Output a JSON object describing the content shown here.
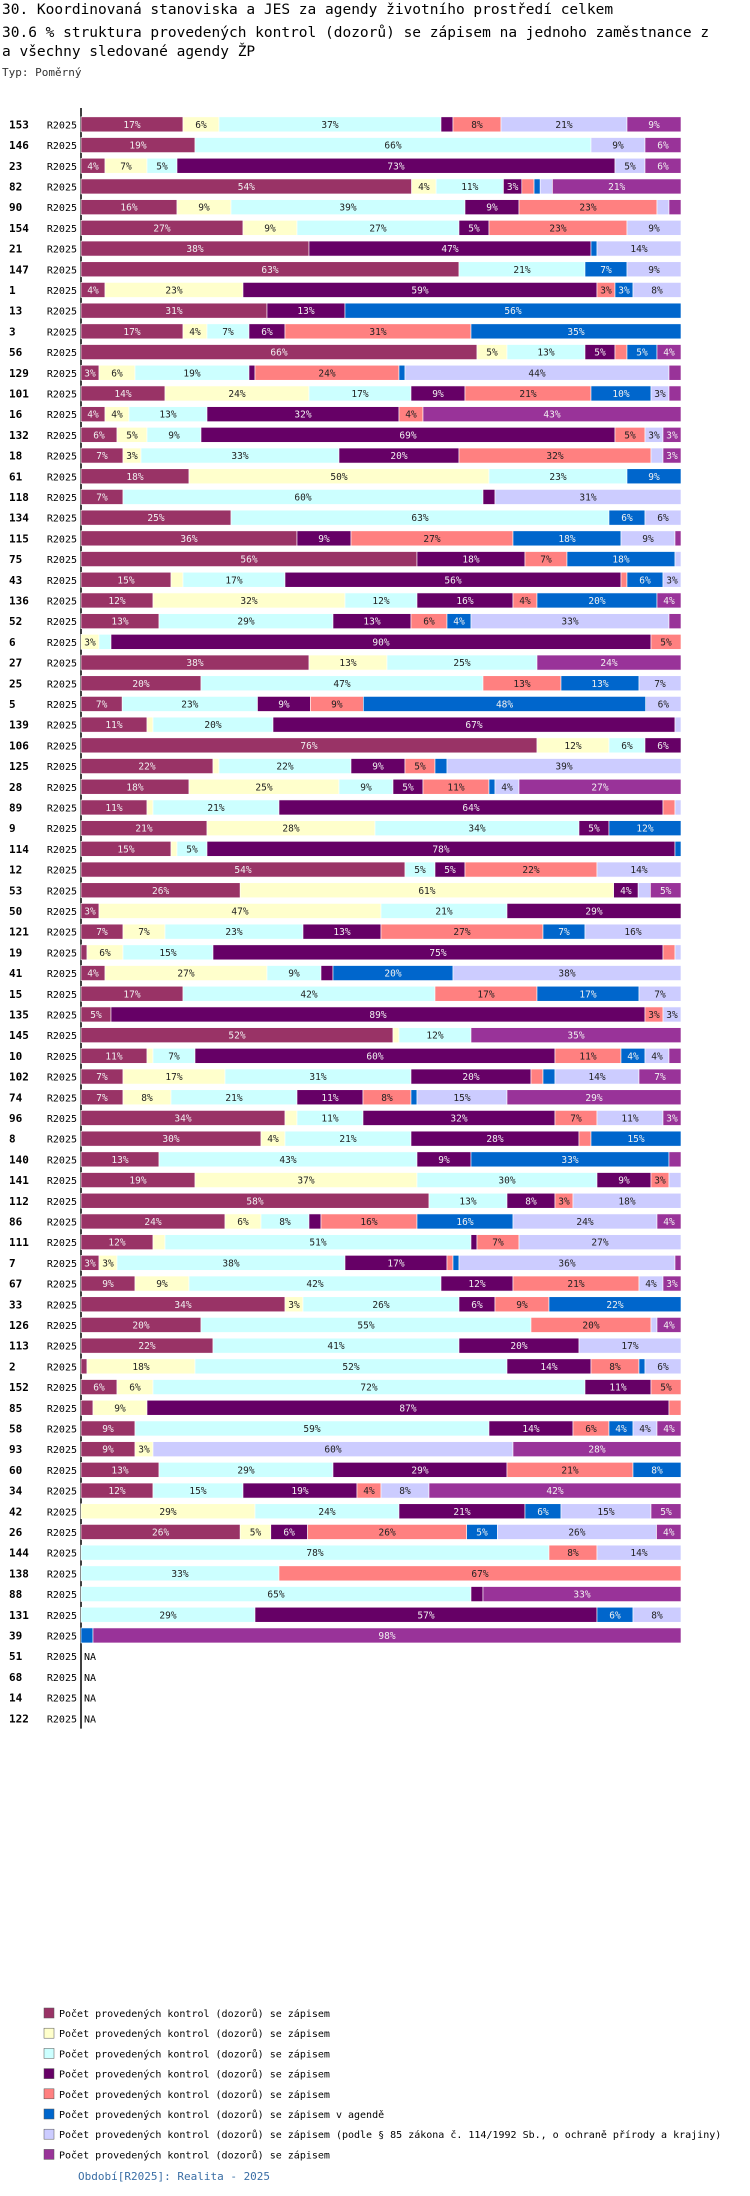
{
  "header": {
    "line1": "30. Koordinovaná stanoviska a JES za agendy životního prostředí celkem",
    "line2": "30.6 % struktura provedených kontrol (dozorů) se zápisem na jednoho zaměstnance z",
    "line3": "a všechny sledované agendy ŽP",
    "type_label": "Typ: Poměrný"
  },
  "footer": {
    "text": "Období[R2025]: Realita - 2025"
  },
  "colors": [
    "#993366",
    "#ffffcc",
    "#ccffff",
    "#660066",
    "#ff8080",
    "#0066cc",
    "#ccccff",
    "#993399"
  ],
  "chart_data": {
    "type": "bar",
    "orientation": "horizontal",
    "stacked": true,
    "normalized": true,
    "period": "R2025",
    "na_label": "NA",
    "legend": [
      "Počet provedených kontrol (dozorů) se zápisem",
      "Počet provedených kontrol (dozorů) se zápisem",
      "Počet provedených kontrol (dozorů) se zápisem",
      "Počet provedených kontrol (dozorů) se zápisem",
      "Počet provedených kontrol (dozorů) se zápisem",
      "Počet provedených kontrol (dozorů) se zápisem v agendě",
      "Počet provedených kontrol (dozorů) se zápisem (podle § 85 zákona č. 114/1992 Sb., o ochraně přírody a krajiny)",
      "Počet provedených kontrol (dozorů) se zápisem"
    ],
    "rows": [
      {
        "id": "153",
        "v": [
          17,
          6,
          37,
          2,
          8,
          0,
          21,
          9
        ]
      },
      {
        "id": "146",
        "v": [
          19,
          0,
          66,
          0,
          0,
          0,
          9,
          6
        ]
      },
      {
        "id": "23",
        "v": [
          4,
          7,
          5,
          73,
          0,
          0,
          5,
          6
        ]
      },
      {
        "id": "82",
        "v": [
          54,
          4,
          11,
          3,
          2,
          1,
          2,
          21
        ]
      },
      {
        "id": "90",
        "v": [
          16,
          9,
          39,
          9,
          23,
          0,
          2,
          2
        ]
      },
      {
        "id": "154",
        "v": [
          27,
          9,
          27,
          5,
          23,
          0,
          9,
          0
        ]
      },
      {
        "id": "21",
        "v": [
          38,
          0,
          0,
          47,
          0,
          1,
          14,
          0
        ]
      },
      {
        "id": "147",
        "v": [
          63,
          0,
          21,
          0,
          0,
          7,
          9,
          0
        ]
      },
      {
        "id": "1",
        "v": [
          4,
          23,
          0,
          59,
          3,
          3,
          8,
          0
        ]
      },
      {
        "id": "13",
        "v": [
          31,
          0,
          0,
          13,
          0,
          56,
          0,
          0
        ]
      },
      {
        "id": "3",
        "v": [
          17,
          4,
          7,
          6,
          31,
          35,
          0,
          0
        ]
      },
      {
        "id": "56",
        "v": [
          66,
          5,
          13,
          5,
          2,
          5,
          0,
          4
        ]
      },
      {
        "id": "129",
        "v": [
          3,
          6,
          19,
          1,
          24,
          1,
          44,
          2
        ]
      },
      {
        "id": "101",
        "v": [
          14,
          24,
          17,
          9,
          21,
          10,
          3,
          2
        ]
      },
      {
        "id": "16",
        "v": [
          4,
          4,
          13,
          32,
          4,
          0,
          0,
          43
        ]
      },
      {
        "id": "132",
        "v": [
          6,
          5,
          9,
          69,
          5,
          0,
          3,
          3
        ]
      },
      {
        "id": "18",
        "v": [
          7,
          3,
          33,
          20,
          32,
          0,
          2,
          3
        ]
      },
      {
        "id": "61",
        "v": [
          18,
          50,
          23,
          0,
          0,
          9,
          0,
          0
        ]
      },
      {
        "id": "118",
        "v": [
          7,
          0,
          60,
          2,
          0,
          0,
          31,
          0
        ]
      },
      {
        "id": "134",
        "v": [
          25,
          0,
          63,
          0,
          0,
          6,
          6,
          0
        ]
      },
      {
        "id": "115",
        "v": [
          36,
          0,
          0,
          9,
          27,
          18,
          9,
          1
        ]
      },
      {
        "id": "75",
        "v": [
          56,
          0,
          0,
          18,
          7,
          18,
          1,
          0
        ]
      },
      {
        "id": "43",
        "v": [
          15,
          2,
          17,
          56,
          1,
          6,
          3,
          0
        ]
      },
      {
        "id": "136",
        "v": [
          12,
          32,
          12,
          16,
          4,
          20,
          0,
          4
        ]
      },
      {
        "id": "52",
        "v": [
          13,
          0,
          29,
          13,
          6,
          4,
          33,
          2
        ]
      },
      {
        "id": "6",
        "v": [
          0,
          3,
          2,
          90,
          5,
          0,
          0,
          0
        ]
      },
      {
        "id": "27",
        "v": [
          38,
          13,
          25,
          0,
          0,
          0,
          0,
          24
        ]
      },
      {
        "id": "25",
        "v": [
          20,
          0,
          47,
          0,
          13,
          13,
          7,
          0
        ]
      },
      {
        "id": "5",
        "v": [
          7,
          0,
          23,
          9,
          9,
          48,
          6,
          0
        ]
      },
      {
        "id": "139",
        "v": [
          11,
          1,
          20,
          67,
          0,
          0,
          1,
          0
        ]
      },
      {
        "id": "106",
        "v": [
          76,
          12,
          6,
          6,
          0,
          0,
          0,
          0
        ]
      },
      {
        "id": "125",
        "v": [
          22,
          1,
          22,
          9,
          5,
          2,
          39,
          0
        ]
      },
      {
        "id": "28",
        "v": [
          18,
          25,
          9,
          5,
          11,
          1,
          4,
          27
        ]
      },
      {
        "id": "89",
        "v": [
          11,
          1,
          21,
          64,
          2,
          0,
          1,
          0
        ]
      },
      {
        "id": "9",
        "v": [
          21,
          28,
          34,
          5,
          0,
          12,
          0,
          0
        ]
      },
      {
        "id": "114",
        "v": [
          15,
          1,
          5,
          78,
          0,
          1,
          0,
          0
        ]
      },
      {
        "id": "12",
        "v": [
          54,
          0,
          5,
          5,
          22,
          0,
          14,
          0
        ]
      },
      {
        "id": "53",
        "v": [
          26,
          61,
          0,
          4,
          0,
          0,
          2,
          5
        ]
      },
      {
        "id": "50",
        "v": [
          3,
          47,
          21,
          29,
          0,
          0,
          0,
          0
        ]
      },
      {
        "id": "121",
        "v": [
          7,
          7,
          23,
          13,
          27,
          7,
          16,
          0
        ]
      },
      {
        "id": "19",
        "v": [
          1,
          6,
          15,
          75,
          2,
          0,
          1,
          0
        ]
      },
      {
        "id": "41",
        "v": [
          4,
          27,
          9,
          2,
          0,
          20,
          38,
          0
        ]
      },
      {
        "id": "15",
        "v": [
          17,
          0,
          42,
          0,
          17,
          17,
          7,
          0
        ]
      },
      {
        "id": "135",
        "v": [
          5,
          0,
          0,
          89,
          3,
          0,
          3,
          0
        ]
      },
      {
        "id": "145",
        "v": [
          52,
          1,
          12,
          0,
          0,
          0,
          0,
          35
        ]
      },
      {
        "id": "10",
        "v": [
          11,
          1,
          7,
          60,
          11,
          4,
          4,
          2
        ]
      },
      {
        "id": "102",
        "v": [
          7,
          17,
          31,
          20,
          2,
          2,
          14,
          7
        ]
      },
      {
        "id": "74",
        "v": [
          7,
          8,
          21,
          11,
          8,
          1,
          15,
          29
        ]
      },
      {
        "id": "96",
        "v": [
          34,
          2,
          11,
          32,
          7,
          0,
          11,
          3
        ]
      },
      {
        "id": "8",
        "v": [
          30,
          4,
          21,
          28,
          2,
          15,
          0,
          0
        ]
      },
      {
        "id": "140",
        "v": [
          13,
          0,
          43,
          9,
          0,
          33,
          0,
          2
        ]
      },
      {
        "id": "141",
        "v": [
          19,
          37,
          30,
          9,
          3,
          0,
          2,
          0
        ]
      },
      {
        "id": "112",
        "v": [
          58,
          0,
          13,
          8,
          3,
          0,
          18,
          0
        ]
      },
      {
        "id": "86",
        "v": [
          24,
          6,
          8,
          2,
          16,
          16,
          24,
          4
        ]
      },
      {
        "id": "111",
        "v": [
          12,
          2,
          51,
          1,
          7,
          0,
          27,
          0
        ]
      },
      {
        "id": "7",
        "v": [
          3,
          3,
          38,
          17,
          1,
          1,
          36,
          1
        ]
      },
      {
        "id": "67",
        "v": [
          9,
          9,
          42,
          12,
          21,
          0,
          4,
          3
        ]
      },
      {
        "id": "33",
        "v": [
          34,
          3,
          26,
          6,
          9,
          22,
          0,
          0
        ]
      },
      {
        "id": "126",
        "v": [
          20,
          0,
          55,
          0,
          20,
          0,
          1,
          4
        ]
      },
      {
        "id": "113",
        "v": [
          22,
          0,
          41,
          20,
          0,
          0,
          17,
          0
        ]
      },
      {
        "id": "2",
        "v": [
          1,
          18,
          52,
          14,
          8,
          1,
          6,
          0
        ]
      },
      {
        "id": "152",
        "v": [
          6,
          6,
          72,
          11,
          5,
          0,
          0,
          0
        ]
      },
      {
        "id": "85",
        "v": [
          2,
          9,
          0,
          87,
          2,
          0,
          0,
          0
        ]
      },
      {
        "id": "58",
        "v": [
          9,
          0,
          59,
          14,
          6,
          4,
          4,
          4
        ]
      },
      {
        "id": "93",
        "v": [
          9,
          3,
          0,
          0,
          0,
          0,
          60,
          28
        ]
      },
      {
        "id": "60",
        "v": [
          13,
          0,
          29,
          29,
          21,
          8,
          0,
          0
        ]
      },
      {
        "id": "34",
        "v": [
          12,
          0,
          15,
          19,
          4,
          0,
          8,
          42
        ]
      },
      {
        "id": "42",
        "v": [
          0,
          29,
          24,
          21,
          0,
          6,
          15,
          5
        ]
      },
      {
        "id": "26",
        "v": [
          26,
          5,
          0,
          6,
          26,
          5,
          26,
          4
        ]
      },
      {
        "id": "144",
        "v": [
          0,
          0,
          78,
          0,
          8,
          0,
          14,
          0
        ]
      },
      {
        "id": "138",
        "v": [
          0,
          0,
          33,
          0,
          67,
          0,
          0,
          0
        ]
      },
      {
        "id": "88",
        "v": [
          0,
          0,
          65,
          2,
          0,
          0,
          0,
          33
        ]
      },
      {
        "id": "131",
        "v": [
          0,
          0,
          29,
          57,
          0,
          6,
          8,
          0
        ]
      },
      {
        "id": "39",
        "v": [
          0,
          0,
          0,
          0,
          0,
          2,
          0,
          98
        ]
      },
      {
        "id": "51",
        "v": null
      },
      {
        "id": "68",
        "v": null
      },
      {
        "id": "14",
        "v": null
      },
      {
        "id": "122",
        "v": null
      }
    ]
  }
}
